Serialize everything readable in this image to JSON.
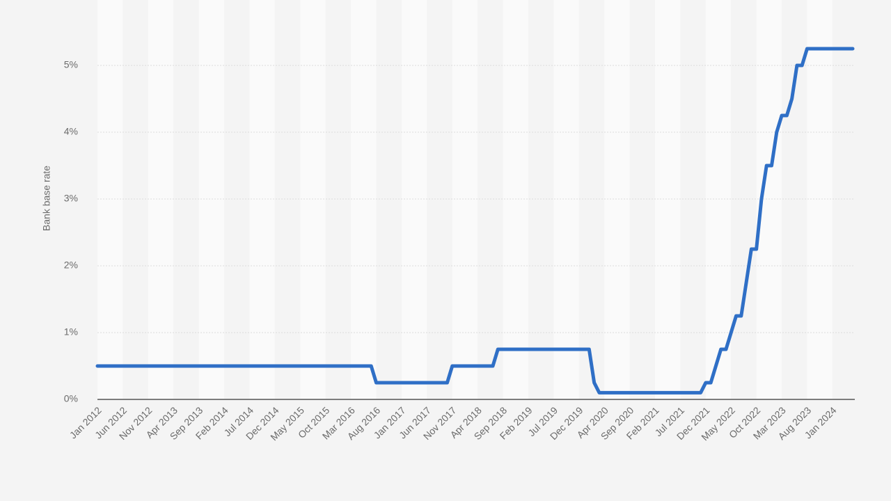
{
  "chart_data": {
    "type": "line",
    "y_label": "Bank base rate",
    "categories": [
      "Jan 2012",
      null,
      null,
      null,
      null,
      "Jun 2012",
      null,
      null,
      null,
      null,
      "Nov 2012",
      null,
      null,
      null,
      null,
      "Apr 2013",
      null,
      null,
      null,
      null,
      "Sep 2013",
      null,
      null,
      null,
      null,
      "Feb 2014",
      null,
      null,
      null,
      null,
      "Jul 2014",
      null,
      null,
      null,
      null,
      "Dec 2014",
      null,
      null,
      null,
      null,
      "May 2015",
      null,
      null,
      null,
      null,
      "Oct 2015",
      null,
      null,
      null,
      null,
      "Mar 2016",
      null,
      null,
      null,
      null,
      "Aug 2016",
      null,
      null,
      null,
      null,
      "Jan 2017",
      null,
      null,
      null,
      null,
      "Jun 2017",
      null,
      null,
      null,
      null,
      "Nov 2017",
      null,
      null,
      null,
      null,
      "Apr 2018",
      null,
      null,
      null,
      null,
      "Sep 2018",
      null,
      null,
      null,
      null,
      "Feb 2019",
      null,
      null,
      null,
      null,
      "Jul 2019",
      null,
      null,
      null,
      null,
      "Dec 2019",
      null,
      null,
      null,
      null,
      "Apr 2020",
      null,
      null,
      null,
      null,
      "Sep 2020",
      null,
      null,
      null,
      null,
      "Feb 2021",
      null,
      null,
      null,
      null,
      "Jul 2021",
      null,
      null,
      null,
      null,
      "Dec 2021",
      null,
      null,
      null,
      null,
      "May 2022",
      null,
      null,
      null,
      null,
      "Oct 2022",
      null,
      null,
      null,
      null,
      "Mar 2023",
      null,
      null,
      null,
      null,
      "Aug 2023",
      null,
      null,
      null,
      null,
      "Jan 2024",
      null,
      null,
      null,
      null
    ],
    "values": [
      0.5,
      0.5,
      0.5,
      0.5,
      0.5,
      0.5,
      0.5,
      0.5,
      0.5,
      0.5,
      0.5,
      0.5,
      0.5,
      0.5,
      0.5,
      0.5,
      0.5,
      0.5,
      0.5,
      0.5,
      0.5,
      0.5,
      0.5,
      0.5,
      0.5,
      0.5,
      0.5,
      0.5,
      0.5,
      0.5,
      0.5,
      0.5,
      0.5,
      0.5,
      0.5,
      0.5,
      0.5,
      0.5,
      0.5,
      0.5,
      0.5,
      0.5,
      0.5,
      0.5,
      0.5,
      0.5,
      0.5,
      0.5,
      0.5,
      0.5,
      0.5,
      0.5,
      0.5,
      0.5,
      0.5,
      0.25,
      0.25,
      0.25,
      0.25,
      0.25,
      0.25,
      0.25,
      0.25,
      0.25,
      0.25,
      0.25,
      0.25,
      0.25,
      0.25,
      0.25,
      0.5,
      0.5,
      0.5,
      0.5,
      0.5,
      0.5,
      0.5,
      0.5,
      0.5,
      0.75,
      0.75,
      0.75,
      0.75,
      0.75,
      0.75,
      0.75,
      0.75,
      0.75,
      0.75,
      0.75,
      0.75,
      0.75,
      0.75,
      0.75,
      0.75,
      0.75,
      0.75,
      0.75,
      0.25,
      0.1,
      0.1,
      0.1,
      0.1,
      0.1,
      0.1,
      0.1,
      0.1,
      0.1,
      0.1,
      0.1,
      0.1,
      0.1,
      0.1,
      0.1,
      0.1,
      0.1,
      0.1,
      0.1,
      0.1,
      0.1,
      0.25,
      0.25,
      0.5,
      0.75,
      0.75,
      1,
      1.25,
      1.25,
      1.75,
      2.25,
      2.25,
      3,
      3.5,
      3.5,
      4,
      4.25,
      4.25,
      4.5,
      5,
      5,
      5.25,
      5.25,
      5.25,
      5.25,
      5.25,
      5.25,
      5.25,
      5.25,
      5.25,
      5.25
    ],
    "color": "#2f6fc6",
    "ylim": [
      0,
      6
    ],
    "yticks": [
      {
        "value": 0,
        "label": "0%"
      },
      {
        "value": 1,
        "label": "1%"
      },
      {
        "value": 2,
        "label": "2%"
      },
      {
        "value": 3,
        "label": "3%"
      },
      {
        "value": 4,
        "label": "4%"
      },
      {
        "value": 5,
        "label": "5%"
      }
    ],
    "grid": true
  }
}
